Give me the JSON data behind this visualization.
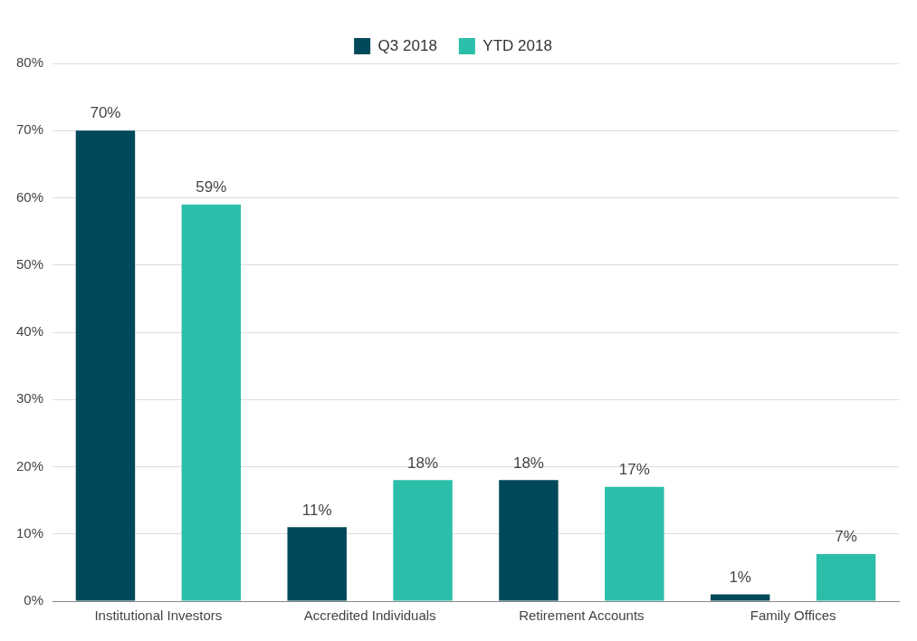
{
  "chart_data": {
    "type": "bar",
    "categories": [
      "Institutional Investors",
      "Accredited Individuals",
      "Retirement Accounts",
      "Family Offices"
    ],
    "series": [
      {
        "name": "Q3 2018",
        "color": "#00495a",
        "values": [
          70,
          11,
          18,
          1
        ],
        "value_labels": [
          "70%",
          "11%",
          "18%",
          "1%"
        ]
      },
      {
        "name": "YTD 2018",
        "color": "#2bbfa9",
        "values": [
          59,
          18,
          17,
          7
        ],
        "value_labels": [
          "59%",
          "18%",
          "17%",
          "7%"
        ]
      }
    ],
    "ylim": [
      0,
      80
    ],
    "yticks": [
      {
        "value": 0,
        "label": "0%"
      },
      {
        "value": 10,
        "label": "10%"
      },
      {
        "value": 20,
        "label": "20%"
      },
      {
        "value": 30,
        "label": "30%"
      },
      {
        "value": 40,
        "label": "40%"
      },
      {
        "value": 50,
        "label": "50%"
      },
      {
        "value": 60,
        "label": "60%"
      },
      {
        "value": 70,
        "label": "70%"
      },
      {
        "value": 80,
        "label": "80%"
      }
    ],
    "grid": "y",
    "legend": "top"
  }
}
